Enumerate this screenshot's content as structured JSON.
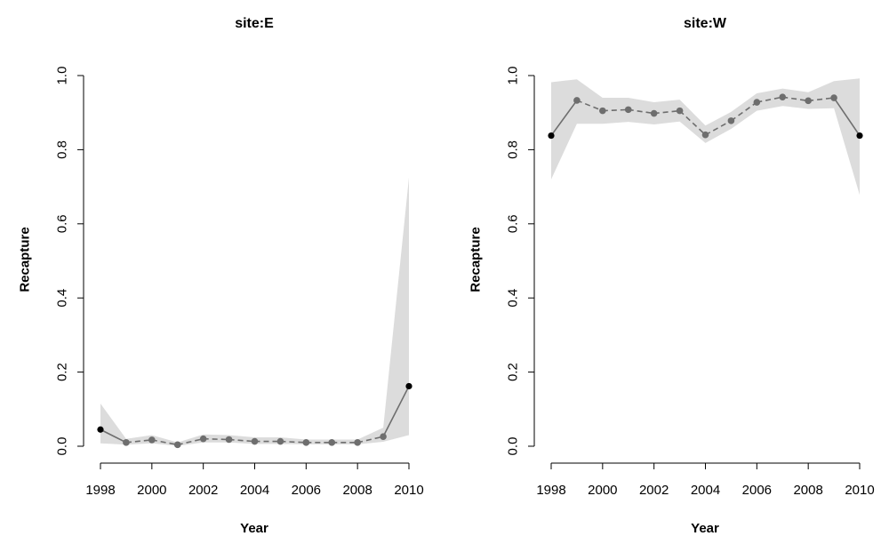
{
  "chart_data": [
    {
      "type": "line",
      "title": "site:E",
      "xlabel": "Year",
      "ylabel": "Recapture",
      "xlim": [
        1998,
        2010
      ],
      "ylim": [
        0,
        1
      ],
      "x_ticks": [
        1998,
        2000,
        2002,
        2004,
        2006,
        2008,
        2010
      ],
      "y_ticks": [
        "0.0",
        "0.2",
        "0.4",
        "0.6",
        "0.8",
        "1.0"
      ],
      "series": [
        {
          "x": [
            1998,
            1999,
            2000,
            2001,
            2002,
            2003,
            2004,
            2005,
            2006,
            2007,
            2008,
            2009,
            2010
          ],
          "y": [
            0.045,
            0.01,
            0.017,
            0.004,
            0.02,
            0.018,
            0.013,
            0.013,
            0.01,
            0.01,
            0.01,
            0.026,
            0.162
          ],
          "lower": [
            0.008,
            0.004,
            0.008,
            0.001,
            0.01,
            0.01,
            0.006,
            0.006,
            0.005,
            0.005,
            0.005,
            0.012,
            0.03
          ],
          "upper": [
            0.115,
            0.02,
            0.03,
            0.01,
            0.032,
            0.03,
            0.024,
            0.024,
            0.018,
            0.018,
            0.018,
            0.05,
            0.725
          ],
          "point_style": [
            "end",
            "mid",
            "mid",
            "mid",
            "mid",
            "mid",
            "mid",
            "mid",
            "mid",
            "mid",
            "mid",
            "mid",
            "end"
          ]
        }
      ]
    },
    {
      "type": "line",
      "title": "site:W",
      "xlabel": "Year",
      "ylabel": "Recapture",
      "xlim": [
        1998,
        2010
      ],
      "ylim": [
        0,
        1
      ],
      "x_ticks": [
        1998,
        2000,
        2002,
        2004,
        2006,
        2008,
        2010
      ],
      "y_ticks": [
        "0.0",
        "0.2",
        "0.4",
        "0.6",
        "0.8",
        "1.0"
      ],
      "series": [
        {
          "x": [
            1998,
            1999,
            2000,
            2001,
            2002,
            2003,
            2004,
            2005,
            2006,
            2007,
            2008,
            2009,
            2010
          ],
          "y": [
            0.838,
            0.933,
            0.905,
            0.908,
            0.898,
            0.905,
            0.84,
            0.878,
            0.928,
            0.942,
            0.932,
            0.94,
            0.838
          ],
          "lower": [
            0.72,
            0.87,
            0.87,
            0.875,
            0.868,
            0.876,
            0.818,
            0.856,
            0.905,
            0.918,
            0.91,
            0.912,
            0.678
          ],
          "upper": [
            0.982,
            0.99,
            0.94,
            0.94,
            0.928,
            0.935,
            0.865,
            0.902,
            0.952,
            0.965,
            0.955,
            0.985,
            0.992
          ],
          "point_style": [
            "end",
            "mid",
            "mid",
            "mid",
            "mid",
            "mid",
            "mid",
            "mid",
            "mid",
            "mid",
            "mid",
            "mid",
            "end"
          ]
        }
      ]
    }
  ],
  "colors": {
    "band": "#dcdcdc",
    "line": "#6e6e6e",
    "mid_point": "#6e6e6e",
    "end_point": "#000000",
    "axis": "#000000"
  }
}
